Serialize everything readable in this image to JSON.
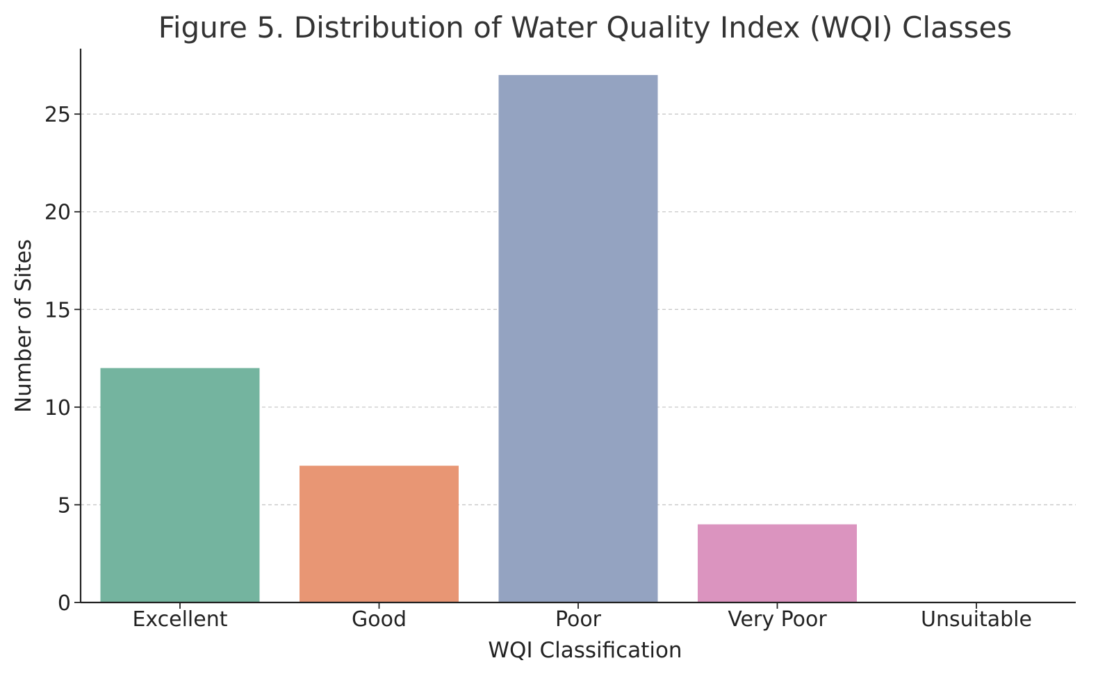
{
  "chart_data": {
    "type": "bar",
    "title": "Figure 5. Distribution of Water Quality Index (WQI) Classes",
    "xlabel": "WQI Classification",
    "ylabel": "Number of Sites",
    "categories": [
      "Excellent",
      "Good",
      "Poor",
      "Very Poor",
      "Unsuitable"
    ],
    "values": [
      12,
      7,
      27,
      4,
      0
    ],
    "colors": [
      "#74b49f",
      "#e89674",
      "#94a3c1",
      "#db94bf",
      "#a6d854"
    ],
    "ylim": [
      0,
      28.35
    ],
    "yticks": [
      0,
      5,
      10,
      15,
      20,
      25
    ],
    "grid": "y-dashed",
    "legend": "none"
  }
}
